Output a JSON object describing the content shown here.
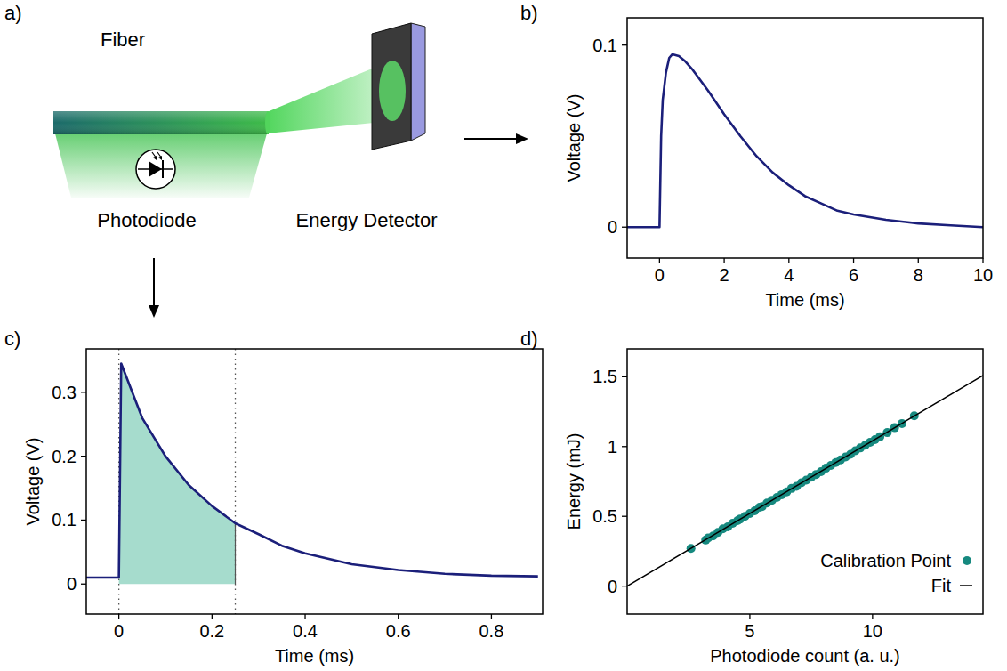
{
  "diagram": {
    "panel": "a)",
    "fiber": "Fiber",
    "photodiode": "Photodiode",
    "energy_detector": "Energy Detector"
  },
  "chart_data": [
    {
      "type": "line",
      "panel": "b)",
      "x_label": "Time (ms)",
      "y_label": "Voltage (V)",
      "xlim": [
        -1,
        10
      ],
      "xticks": [
        0,
        2,
        4,
        6,
        8,
        10
      ],
      "ylim": [
        -0.017,
        0.115
      ],
      "yticks": [
        0,
        0.1
      ],
      "series": [
        {
          "color": "#1b1f7a",
          "x": [
            -1,
            0,
            0.05,
            0.1,
            0.2,
            0.3,
            0.4,
            0.6,
            0.8,
            1,
            1.5,
            2,
            2.5,
            3,
            3.5,
            4,
            4.5,
            5,
            5.5,
            6,
            7,
            8,
            9,
            10
          ],
          "values": [
            0,
            0,
            0.05,
            0.07,
            0.085,
            0.093,
            0.095,
            0.094,
            0.091,
            0.087,
            0.075,
            0.062,
            0.05,
            0.039,
            0.03,
            0.023,
            0.017,
            0.013,
            0.009,
            0.007,
            0.004,
            0.002,
            0.001,
            0
          ]
        }
      ]
    },
    {
      "type": "line",
      "panel": "c)",
      "x_label": "Time (ms)",
      "y_label": "Voltage (V)",
      "xlim": [
        -0.07,
        0.91
      ],
      "xticks": [
        0,
        0.2,
        0.4,
        0.6,
        0.8
      ],
      "ylim": [
        -0.047,
        0.368
      ],
      "yticks": [
        0,
        0.1,
        0.2,
        0.3
      ],
      "integration_window": [
        0,
        0.25
      ],
      "window_color": "#a6dccd",
      "series": [
        {
          "color": "#1b1f7a",
          "x": [
            -0.07,
            0,
            0.005,
            0.05,
            0.1,
            0.15,
            0.2,
            0.25,
            0.3,
            0.35,
            0.4,
            0.5,
            0.6,
            0.7,
            0.8,
            0.9
          ],
          "values": [
            0.01,
            0.01,
            0.345,
            0.26,
            0.2,
            0.155,
            0.122,
            0.095,
            0.078,
            0.06,
            0.048,
            0.031,
            0.022,
            0.016,
            0.013,
            0.012
          ]
        }
      ]
    },
    {
      "type": "scatter",
      "panel": "d)",
      "x_label": "Photodiode count (a. u.)",
      "y_label": "Energy (mJ)",
      "xlim": [
        0,
        14.5
      ],
      "xticks": [
        5,
        10
      ],
      "ylim": [
        -0.2,
        1.7
      ],
      "yticks": [
        0,
        0.5,
        1,
        1.5
      ],
      "legend": "lower right",
      "series": [
        {
          "name": "Calibration Point",
          "type": "scatter",
          "marker": "circle",
          "color": "#16897f",
          "x": [
            2.6,
            3.2,
            3.3,
            3.5,
            3.7,
            3.9,
            4.1,
            4.3,
            4.5,
            4.6,
            4.8,
            5.0,
            5.2,
            5.4,
            5.5,
            5.7,
            5.9,
            6.1,
            6.3,
            6.5,
            6.7,
            6.9,
            7.1,
            7.3,
            7.5,
            7.7,
            7.9,
            8.1,
            8.3,
            8.5,
            8.7,
            8.9,
            9.1,
            9.3,
            9.5,
            9.7,
            9.9,
            10.1,
            10.3,
            10.6,
            10.9,
            11.2,
            11.7
          ],
          "values": [
            0.27,
            0.33,
            0.345,
            0.36,
            0.385,
            0.41,
            0.425,
            0.45,
            0.47,
            0.48,
            0.5,
            0.52,
            0.54,
            0.565,
            0.57,
            0.595,
            0.615,
            0.635,
            0.655,
            0.675,
            0.7,
            0.715,
            0.74,
            0.76,
            0.78,
            0.8,
            0.82,
            0.845,
            0.865,
            0.885,
            0.905,
            0.925,
            0.945,
            0.97,
            0.99,
            1.01,
            1.03,
            1.05,
            1.07,
            1.1,
            1.135,
            1.165,
            1.22
          ]
        },
        {
          "name": "Fit",
          "type": "line",
          "line_style": "solid",
          "color": "#000000",
          "x": [
            0,
            14.5
          ],
          "values": [
            0.0,
            1.51
          ]
        }
      ]
    }
  ]
}
